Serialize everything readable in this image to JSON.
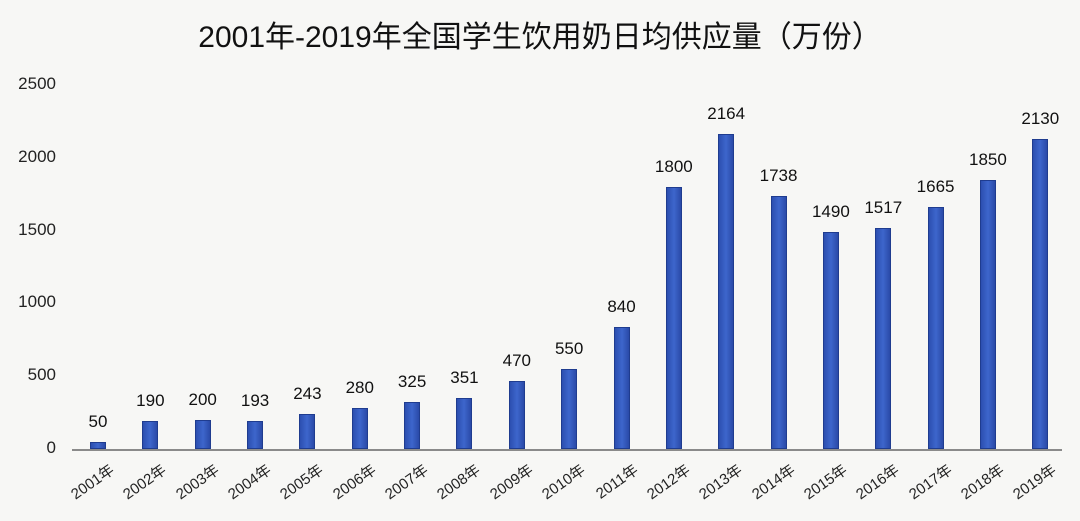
{
  "chart_data": {
    "type": "bar",
    "title": "2001年-2019年全国学生饮用奶日均供应量（万份）",
    "xlabel": "",
    "ylabel": "",
    "ylim": [
      0,
      2500
    ],
    "yticks": [
      "0",
      "500",
      "1000",
      "1500",
      "2000",
      "2500"
    ],
    "grid": false,
    "legend": null,
    "bar_color": "#3558bd",
    "categories": [
      "2001年",
      "2002年",
      "2003年",
      "2004年",
      "2005年",
      "2006年",
      "2007年",
      "2008年",
      "2009年",
      "2010年",
      "2011年",
      "2012年",
      "2013年",
      "2014年",
      "2015年",
      "2016年",
      "2017年",
      "2018年",
      "2019年"
    ],
    "values": [
      50,
      190,
      200,
      193,
      243,
      280,
      325,
      351,
      470,
      550,
      840,
      1800,
      2164,
      1738,
      1490,
      1517,
      1665,
      1850,
      2130
    ],
    "data_labels": [
      "50",
      "190",
      "200",
      "193",
      "243",
      "280",
      "325",
      "351",
      "470",
      "550",
      "840",
      "1800",
      "2164",
      "1738",
      "1490",
      "1517",
      "1665",
      "1850",
      "2130"
    ]
  }
}
